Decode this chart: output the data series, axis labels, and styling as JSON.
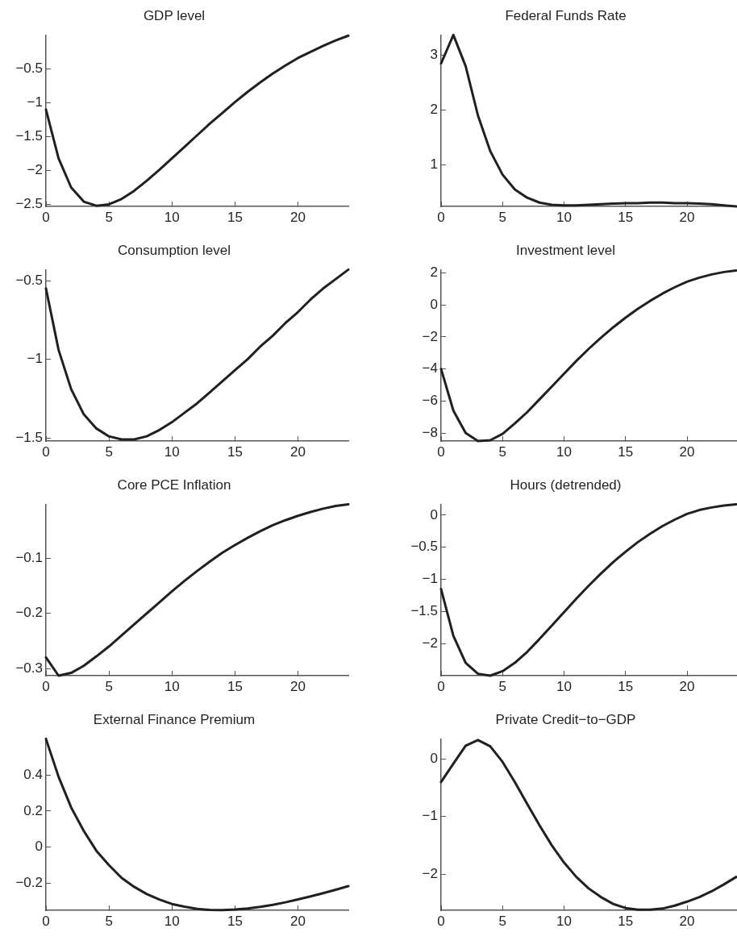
{
  "chart_data": [
    {
      "type": "line",
      "title": "GDP level",
      "x": [
        0,
        1,
        2,
        3,
        4,
        5,
        6,
        7,
        8,
        9,
        10,
        11,
        12,
        13,
        14,
        15,
        16,
        17,
        18,
        19,
        20,
        21,
        22,
        23,
        24
      ],
      "color": "#231f20",
      "marker": "none",
      "grid": false,
      "xlim": [
        0,
        24
      ],
      "xticks": [
        0,
        5,
        10,
        15,
        20
      ],
      "ylim": [
        -2.53,
        0
      ],
      "yticks": [
        -2.5,
        -2,
        -1.5,
        -1,
        -0.5
      ],
      "values": [
        -1.1,
        -1.82,
        -2.25,
        -2.46,
        -2.52,
        -2.5,
        -2.42,
        -2.3,
        -2.15,
        -1.99,
        -1.82,
        -1.65,
        -1.48,
        -1.31,
        -1.15,
        -0.99,
        -0.84,
        -0.7,
        -0.57,
        -0.45,
        -0.34,
        -0.25,
        -0.16,
        -0.08,
        -0.01
      ]
    },
    {
      "type": "line",
      "title": "Federal Funds Rate",
      "x": [
        0,
        1,
        2,
        3,
        4,
        5,
        6,
        7,
        8,
        9,
        10,
        11,
        12,
        13,
        14,
        15,
        16,
        17,
        18,
        19,
        20,
        21,
        22,
        23,
        24
      ],
      "color": "#231f20",
      "marker": "none",
      "grid": false,
      "xlim": [
        0,
        24
      ],
      "xticks": [
        0,
        5,
        10,
        15,
        20
      ],
      "ylim": [
        0.24,
        3.37
      ],
      "yticks": [
        1,
        2,
        3
      ],
      "values": [
        2.85,
        3.37,
        2.8,
        1.9,
        1.25,
        0.82,
        0.55,
        0.4,
        0.31,
        0.27,
        0.26,
        0.26,
        0.27,
        0.28,
        0.29,
        0.3,
        0.3,
        0.31,
        0.31,
        0.3,
        0.3,
        0.29,
        0.28,
        0.26,
        0.24
      ]
    },
    {
      "type": "line",
      "title": "Consumption level",
      "x": [
        0,
        1,
        2,
        3,
        4,
        5,
        6,
        7,
        8,
        9,
        10,
        11,
        12,
        13,
        14,
        15,
        16,
        17,
        18,
        19,
        20,
        21,
        22,
        23,
        24
      ],
      "color": "#231f20",
      "marker": "none",
      "grid": false,
      "xlim": [
        0,
        24
      ],
      "xticks": [
        0,
        5,
        10,
        15,
        20
      ],
      "ylim": [
        -1.52,
        -0.43
      ],
      "yticks": [
        -1.5,
        -1,
        -0.5
      ],
      "values": [
        -0.55,
        -0.94,
        -1.19,
        -1.35,
        -1.44,
        -1.49,
        -1.51,
        -1.51,
        -1.49,
        -1.45,
        -1.4,
        -1.34,
        -1.28,
        -1.21,
        -1.14,
        -1.07,
        -1.0,
        -0.92,
        -0.85,
        -0.77,
        -0.7,
        -0.62,
        -0.55,
        -0.49,
        -0.43
      ]
    },
    {
      "type": "line",
      "title": "Investment level",
      "x": [
        0,
        1,
        2,
        3,
        4,
        5,
        6,
        7,
        8,
        9,
        10,
        11,
        12,
        13,
        14,
        15,
        16,
        17,
        18,
        19,
        20,
        21,
        22,
        23,
        24
      ],
      "color": "#231f20",
      "marker": "none",
      "grid": false,
      "xlim": [
        0,
        24
      ],
      "xticks": [
        0,
        5,
        10,
        15,
        20
      ],
      "ylim": [
        -8.5,
        2.2
      ],
      "yticks": [
        -8,
        -6,
        -4,
        -2,
        0,
        2
      ],
      "values": [
        -4,
        -6.6,
        -8,
        -8.5,
        -8.45,
        -8.05,
        -7.4,
        -6.7,
        -5.9,
        -5.1,
        -4.3,
        -3.5,
        -2.75,
        -2.05,
        -1.4,
        -0.8,
        -0.25,
        0.25,
        0.7,
        1.1,
        1.45,
        1.7,
        1.9,
        2.05,
        2.15
      ]
    },
    {
      "type": "line",
      "title": "Core PCE Inflation",
      "x": [
        0,
        1,
        2,
        3,
        4,
        5,
        6,
        7,
        8,
        9,
        10,
        11,
        12,
        13,
        14,
        15,
        16,
        17,
        18,
        19,
        20,
        21,
        22,
        23,
        24
      ],
      "color": "#231f20",
      "marker": "none",
      "grid": false,
      "xlim": [
        0,
        24
      ],
      "xticks": [
        0,
        5,
        10,
        15,
        20
      ],
      "ylim": [
        -0.313,
        -0.002
      ],
      "yticks": [
        -0.3,
        -0.2,
        -0.1
      ],
      "values": [
        -0.28,
        -0.313,
        -0.308,
        -0.295,
        -0.278,
        -0.26,
        -0.24,
        -0.22,
        -0.2,
        -0.18,
        -0.16,
        -0.141,
        -0.123,
        -0.106,
        -0.09,
        -0.076,
        -0.063,
        -0.051,
        -0.04,
        -0.031,
        -0.023,
        -0.016,
        -0.01,
        -0.005,
        -0.002
      ]
    },
    {
      "type": "line",
      "title": "Hours (detrended)",
      "x": [
        0,
        1,
        2,
        3,
        4,
        5,
        6,
        7,
        8,
        9,
        10,
        11,
        12,
        13,
        14,
        15,
        16,
        17,
        18,
        19,
        20,
        21,
        22,
        23,
        24
      ],
      "color": "#231f20",
      "marker": "none",
      "grid": false,
      "xlim": [
        0,
        24
      ],
      "xticks": [
        0,
        5,
        10,
        15,
        20
      ],
      "ylim": [
        -2.5,
        0.17
      ],
      "yticks": [
        -2,
        -1.5,
        -1,
        -0.5,
        0
      ],
      "values": [
        -1.15,
        -1.88,
        -2.3,
        -2.47,
        -2.5,
        -2.43,
        -2.3,
        -2.13,
        -1.93,
        -1.72,
        -1.51,
        -1.3,
        -1.1,
        -0.91,
        -0.73,
        -0.57,
        -0.42,
        -0.29,
        -0.17,
        -0.07,
        0.02,
        0.08,
        0.12,
        0.15,
        0.17
      ]
    },
    {
      "type": "line",
      "title": "External Finance Premium",
      "x": [
        0,
        1,
        2,
        3,
        4,
        5,
        6,
        7,
        8,
        9,
        10,
        11,
        12,
        13,
        14,
        15,
        16,
        17,
        18,
        19,
        20,
        21,
        22,
        23,
        24
      ],
      "color": "#231f20",
      "marker": "none",
      "grid": false,
      "xlim": [
        0,
        24
      ],
      "xticks": [
        0,
        5,
        10,
        15,
        20
      ],
      "ylim": [
        -0.35,
        0.6
      ],
      "yticks": [
        -0.2,
        0,
        0.2,
        0.4
      ],
      "values": [
        0.6,
        0.39,
        0.22,
        0.09,
        -0.02,
        -0.1,
        -0.17,
        -0.22,
        -0.26,
        -0.29,
        -0.315,
        -0.33,
        -0.342,
        -0.348,
        -0.349,
        -0.346,
        -0.34,
        -0.331,
        -0.32,
        -0.306,
        -0.29,
        -0.273,
        -0.255,
        -0.236,
        -0.216
      ]
    },
    {
      "type": "line",
      "title": "Private Credit−to−GDP",
      "x": [
        0,
        1,
        2,
        3,
        4,
        5,
        6,
        7,
        8,
        9,
        10,
        11,
        12,
        13,
        14,
        15,
        16,
        17,
        18,
        19,
        20,
        21,
        22,
        23,
        24
      ],
      "color": "#231f20",
      "marker": "none",
      "grid": false,
      "xlim": [
        0,
        24
      ],
      "xticks": [
        0,
        5,
        10,
        15,
        20
      ],
      "ylim": [
        -2.63,
        0.35
      ],
      "yticks": [
        -2,
        -1,
        0
      ],
      "values": [
        -0.4,
        -0.08,
        0.23,
        0.33,
        0.22,
        -0.05,
        -0.4,
        -0.78,
        -1.15,
        -1.5,
        -1.8,
        -2.05,
        -2.25,
        -2.4,
        -2.52,
        -2.59,
        -2.62,
        -2.62,
        -2.6,
        -2.55,
        -2.48,
        -2.4,
        -2.3,
        -2.18,
        -2.05
      ]
    }
  ]
}
